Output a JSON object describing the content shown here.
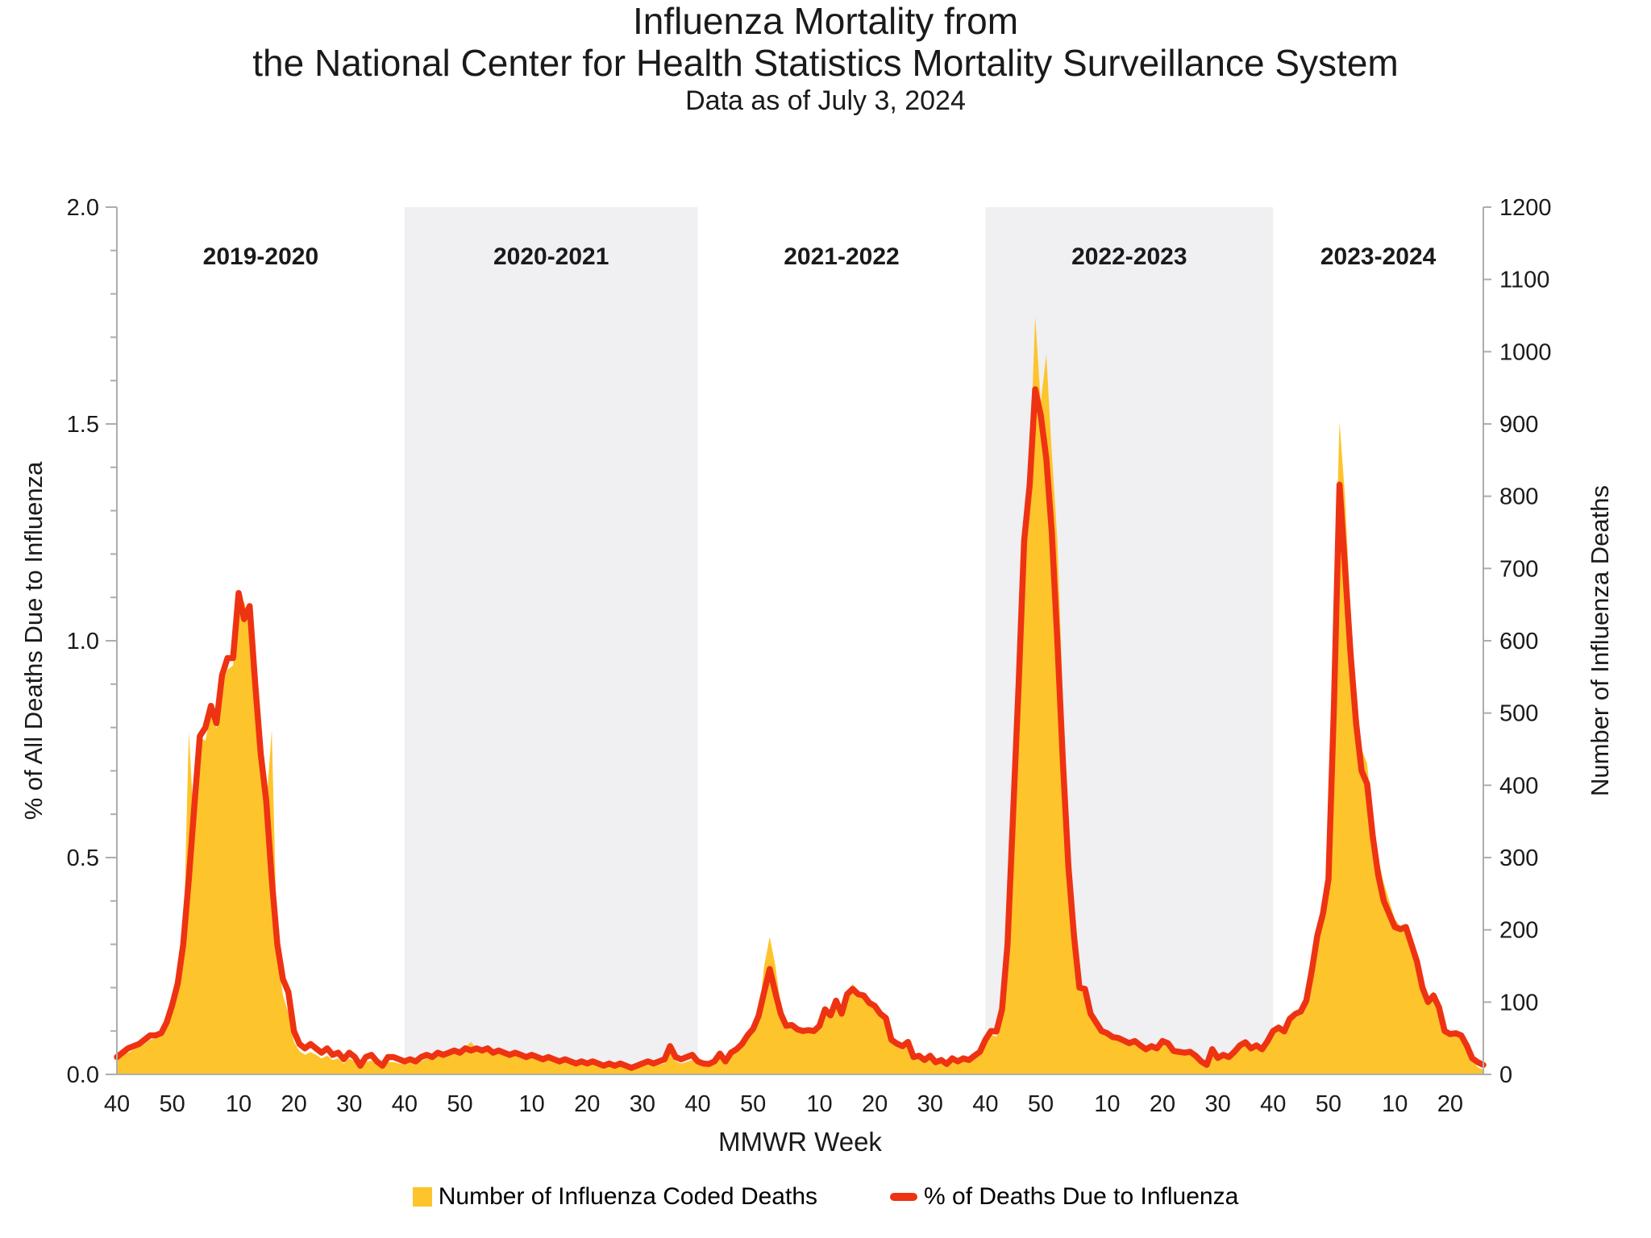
{
  "header": {
    "title_line1": "Influenza Mortality from",
    "title_line2": "the National Center for Health Statistics Mortality Surveillance System",
    "subtitle": "Data as of July 3, 2024"
  },
  "legend": {
    "deaths_label": "Number of Influenza Coded Deaths",
    "pct_label": "% of Deaths Due to Influenza"
  },
  "colors": {
    "area_fill": "#FDC42B",
    "line_red": "#EE3312",
    "season_band": "#F0EFF2",
    "axis_gray": "#ADADAD",
    "text_black": "#1a1a1a"
  },
  "chart_data": {
    "type": "area",
    "title": "Influenza Mortality from the National Center for Health Statistics Mortality Surveillance System",
    "xlabel": "MMWR Week",
    "ylabel_left": "% of All Deaths Due to Influenza",
    "ylabel_right": "Number of Influenza Deaths",
    "ylim_left": [
      0.0,
      2.0
    ],
    "ylim_right": [
      0,
      1200
    ],
    "y_left_major_step": 0.5,
    "y_left_minor_step": 0.1,
    "y_right_step": 100,
    "y_left_tick_labels": [
      "0.0",
      "0.5",
      "1.0",
      "1.5",
      "2.0"
    ],
    "y_right_tick_labels": [
      "0",
      "100",
      "200",
      "300",
      "400",
      "500",
      "600",
      "700",
      "800",
      "900",
      "1000",
      "1100",
      "1200"
    ],
    "grid": false,
    "legend_position": "bottom",
    "n_weeks": 248,
    "week_tick_indices": [
      0,
      10,
      22,
      32,
      42,
      52,
      62,
      75,
      85,
      95,
      105,
      115,
      127,
      137,
      147,
      157,
      167,
      179,
      189,
      199,
      209,
      219,
      231,
      241
    ],
    "week_tick_labels": [
      "40",
      "50",
      "10",
      "20",
      "30",
      "40",
      "50",
      "10",
      "20",
      "30",
      "40",
      "50",
      "10",
      "20",
      "30",
      "40",
      "50",
      "10",
      "20",
      "30",
      "40",
      "50",
      "10",
      "20"
    ],
    "seasons": [
      {
        "label": "2019-2020",
        "start": 0,
        "end": 52,
        "shaded": false
      },
      {
        "label": "2020-2021",
        "start": 52,
        "end": 105,
        "shaded": true
      },
      {
        "label": "2021-2022",
        "start": 105,
        "end": 157,
        "shaded": false
      },
      {
        "label": "2022-2023",
        "start": 157,
        "end": 209,
        "shaded": true
      },
      {
        "label": "2023-2024",
        "start": 209,
        "end": 248,
        "shaded": false
      }
    ],
    "series": [
      {
        "name": "% of Deaths Due to Influenza",
        "axis": "left",
        "style": "line",
        "color": "#EE3312",
        "values": [
          0.04,
          0.05,
          0.06,
          0.065,
          0.07,
          0.08,
          0.09,
          0.09,
          0.095,
          0.12,
          0.16,
          0.21,
          0.3,
          0.45,
          0.62,
          0.78,
          0.8,
          0.85,
          0.81,
          0.92,
          0.96,
          0.96,
          1.11,
          1.05,
          1.08,
          0.9,
          0.74,
          0.63,
          0.45,
          0.3,
          0.22,
          0.19,
          0.1,
          0.07,
          0.06,
          0.07,
          0.06,
          0.05,
          0.06,
          0.045,
          0.05,
          0.035,
          0.05,
          0.04,
          0.02,
          0.04,
          0.045,
          0.03,
          0.02,
          0.04,
          0.04,
          0.035,
          0.03,
          0.035,
          0.03,
          0.04,
          0.045,
          0.04,
          0.05,
          0.045,
          0.05,
          0.055,
          0.05,
          0.06,
          0.055,
          0.06,
          0.055,
          0.06,
          0.05,
          0.055,
          0.05,
          0.045,
          0.05,
          0.045,
          0.04,
          0.045,
          0.04,
          0.035,
          0.04,
          0.035,
          0.03,
          0.035,
          0.03,
          0.025,
          0.03,
          0.025,
          0.03,
          0.025,
          0.02,
          0.025,
          0.02,
          0.025,
          0.02,
          0.015,
          0.02,
          0.025,
          0.03,
          0.025,
          0.03,
          0.035,
          0.065,
          0.04,
          0.035,
          0.04,
          0.045,
          0.03,
          0.025,
          0.024,
          0.03,
          0.048,
          0.03,
          0.05,
          0.058,
          0.07,
          0.09,
          0.105,
          0.135,
          0.19,
          0.243,
          0.19,
          0.14,
          0.112,
          0.114,
          0.104,
          0.1,
          0.102,
          0.1,
          0.112,
          0.15,
          0.136,
          0.17,
          0.14,
          0.185,
          0.197,
          0.185,
          0.182,
          0.165,
          0.158,
          0.14,
          0.13,
          0.08,
          0.071,
          0.065,
          0.075,
          0.04,
          0.043,
          0.033,
          0.043,
          0.028,
          0.033,
          0.024,
          0.037,
          0.03,
          0.037,
          0.033,
          0.043,
          0.052,
          0.08,
          0.1,
          0.099,
          0.15,
          0.3,
          0.6,
          0.9,
          1.23,
          1.36,
          1.58,
          1.52,
          1.42,
          1.25,
          1.0,
          0.72,
          0.48,
          0.32,
          0.2,
          0.197,
          0.14,
          0.12,
          0.1,
          0.095,
          0.086,
          0.084,
          0.078,
          0.072,
          0.077,
          0.067,
          0.058,
          0.065,
          0.06,
          0.077,
          0.072,
          0.054,
          0.052,
          0.05,
          0.052,
          0.043,
          0.03,
          0.022,
          0.058,
          0.038,
          0.045,
          0.04,
          0.052,
          0.067,
          0.074,
          0.06,
          0.067,
          0.058,
          0.077,
          0.1,
          0.108,
          0.099,
          0.128,
          0.139,
          0.145,
          0.17,
          0.24,
          0.32,
          0.37,
          0.45,
          0.85,
          1.36,
          1.17,
          0.97,
          0.81,
          0.7,
          0.67,
          0.55,
          0.46,
          0.4,
          0.37,
          0.34,
          0.335,
          0.34,
          0.3,
          0.26,
          0.2,
          0.167,
          0.182,
          0.154,
          0.1,
          0.093,
          0.095,
          0.09,
          0.067,
          0.037,
          0.028,
          0.022
        ]
      },
      {
        "name": "Number of Influenza Coded Deaths",
        "axis": "right",
        "style": "area",
        "color": "#FDC42B",
        "values": [
          25,
          28,
          30,
          34,
          38,
          42,
          48,
          50,
          52,
          64,
          86,
          115,
          165,
          474,
          335,
          465,
          462,
          500,
          478,
          540,
          560,
          566,
          640,
          655,
          622,
          520,
          425,
          370,
          477,
          165,
          110,
          85,
          45,
          32,
          27,
          31,
          27,
          22,
          26,
          20,
          22,
          15,
          22,
          18,
          9,
          17,
          19,
          13,
          9,
          17,
          17,
          15,
          14,
          16,
          15,
          18,
          22,
          20,
          25,
          24,
          28,
          30,
          30,
          38,
          45,
          36,
          34,
          35,
          30,
          32,
          30,
          26,
          28,
          25,
          22,
          24,
          22,
          18,
          20,
          18,
          15,
          17,
          15,
          13,
          14,
          12,
          14,
          12,
          10,
          11,
          10,
          11,
          9,
          8,
          9,
          11,
          13,
          11,
          13,
          15,
          30,
          18,
          15,
          17,
          20,
          16,
          13,
          12,
          16,
          26,
          16,
          27,
          32,
          40,
          52,
          60,
          80,
          150,
          190,
          152,
          95,
          70,
          70,
          65,
          60,
          62,
          60,
          68,
          90,
          85,
          100,
          85,
          115,
          125,
          115,
          112,
          100,
          95,
          85,
          78,
          48,
          42,
          38,
          44,
          22,
          25,
          18,
          25,
          15,
          18,
          13,
          20,
          16,
          20,
          18,
          24,
          30,
          40,
          55,
          52,
          80,
          165,
          340,
          530,
          730,
          840,
          1049,
          930,
          996,
          860,
          740,
          520,
          320,
          185,
          120,
          115,
          82,
          70,
          58,
          56,
          50,
          48,
          45,
          41,
          44,
          38,
          33,
          37,
          34,
          44,
          41,
          30,
          29,
          28,
          29,
          24,
          16,
          11,
          32,
          21,
          25,
          22,
          29,
          38,
          42,
          33,
          38,
          32,
          44,
          55,
          60,
          55,
          72,
          78,
          82,
          95,
          135,
          180,
          230,
          300,
          620,
          903,
          800,
          640,
          531,
          450,
          430,
          350,
          300,
          265,
          240,
          215,
          205,
          205,
          185,
          160,
          120,
          105,
          115,
          90,
          55,
          52,
          55,
          50,
          35,
          18,
          10,
          6
        ]
      }
    ]
  }
}
